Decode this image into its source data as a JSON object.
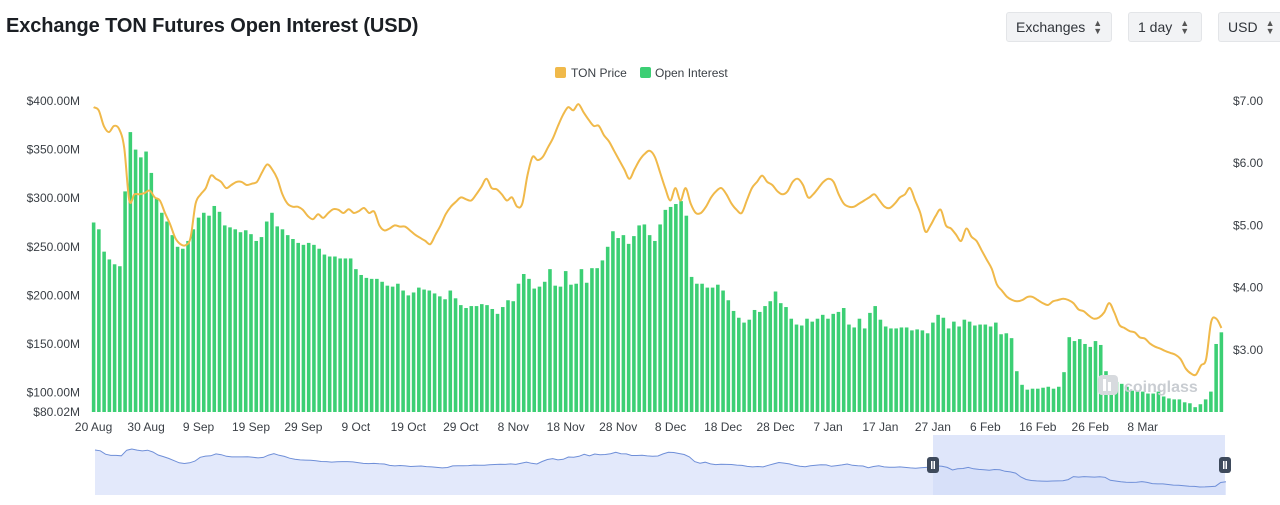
{
  "header": {
    "title": "Exchange TON Futures Open Interest (USD)",
    "exchanges_label": "Exchanges",
    "interval_label": "1 day",
    "currency_label": "USD"
  },
  "watermark": "coinglass",
  "colors": {
    "price": "#f0b94a",
    "oi": "#3ccf74",
    "navigator_fill": "#e3e9fb",
    "navigator_line": "#6f8fd8",
    "navigator_selection": "#d2dcf8"
  },
  "chart_data": {
    "type": "bar",
    "title": "Exchange TON Futures Open Interest (USD)",
    "legend": {
      "position": "top-center",
      "entries": [
        "TON Price",
        "Open Interest"
      ]
    },
    "x_tick_labels": [
      "20 Aug",
      "30 Aug",
      "9 Sep",
      "19 Sep",
      "29 Sep",
      "9 Oct",
      "19 Oct",
      "29 Oct",
      "8 Nov",
      "18 Nov",
      "28 Nov",
      "8 Dec",
      "18 Dec",
      "28 Dec",
      "7 Jan",
      "17 Jan",
      "27 Jan",
      "6 Feb",
      "16 Feb",
      "26 Feb",
      "8 Mar"
    ],
    "y_left": {
      "ticks": [
        "$400.00M",
        "$350.00M",
        "$300.00M",
        "$250.00M",
        "$200.00M",
        "$150.00M",
        "$100.00M",
        "$80.02M"
      ],
      "min": 80.02,
      "max": 400,
      "unit": "M USD"
    },
    "y_right": {
      "ticks": [
        "$7.00",
        "$6.00",
        "$5.00",
        "$4.00",
        "$3.00"
      ],
      "min": 2.0,
      "max": 7.0,
      "unit": "USD"
    },
    "grid": false,
    "start_date": "2024-08-20",
    "series": [
      {
        "name": "Open Interest",
        "axis": "left",
        "type": "bar",
        "values": [
          275,
          268,
          245,
          237,
          232,
          230,
          307,
          368,
          350,
          342,
          348,
          326,
          300,
          285,
          276,
          262,
          250,
          248,
          256,
          268,
          280,
          285,
          282,
          292,
          286,
          272,
          270,
          268,
          265,
          267,
          263,
          256,
          260,
          276,
          285,
          271,
          268,
          262,
          258,
          254,
          252,
          254,
          252,
          248,
          242,
          240,
          240,
          238,
          238,
          238,
          227,
          221,
          218,
          217,
          217,
          214,
          210,
          209,
          212,
          205,
          200,
          203,
          208,
          206,
          205,
          202,
          199,
          196,
          205,
          197,
          190,
          187,
          189,
          189,
          191,
          190,
          186,
          181,
          188,
          195,
          194,
          212,
          222,
          217,
          207,
          209,
          214,
          227,
          210,
          209,
          225,
          211,
          212,
          227,
          213,
          228,
          228,
          236,
          250,
          266,
          259,
          262,
          253,
          261,
          272,
          273,
          262,
          256,
          273,
          288,
          291,
          294,
          297,
          282,
          219,
          212,
          212,
          208,
          208,
          211,
          205,
          195,
          184,
          177,
          172,
          175,
          185,
          183,
          189,
          194,
          204,
          192,
          188,
          176,
          170,
          169,
          176,
          173,
          176,
          180,
          176,
          181,
          183,
          187,
          170,
          167,
          176,
          166,
          182,
          189,
          175,
          168,
          166,
          166,
          167,
          167,
          164,
          165,
          164,
          161,
          172,
          180,
          177,
          166,
          173,
          168,
          175,
          173,
          169,
          170,
          170,
          168,
          172,
          160,
          161,
          156,
          122,
          108,
          103,
          104,
          104,
          105,
          106,
          104,
          106,
          121,
          157,
          153,
          155,
          150,
          147,
          153,
          149,
          122,
          116,
          111,
          109,
          106,
          102,
          102,
          101,
          99,
          99,
          101,
          96,
          94,
          93,
          93,
          90,
          89,
          85,
          88,
          93,
          101,
          150,
          162
        ]
      },
      {
        "name": "TON Price",
        "axis": "right",
        "type": "line",
        "values": [
          6.9,
          6.85,
          6.6,
          6.5,
          6.6,
          6.55,
          6.25,
          5.4,
          5.5,
          5.5,
          5.52,
          5.56,
          5.45,
          5.4,
          5.2,
          5.02,
          4.8,
          4.7,
          4.68,
          4.8,
          5.35,
          5.5,
          5.6,
          5.8,
          5.75,
          5.7,
          5.6,
          5.65,
          5.7,
          5.7,
          5.65,
          5.67,
          5.7,
          5.85,
          5.98,
          5.9,
          5.75,
          5.5,
          5.35,
          5.3,
          5.3,
          5.25,
          5.15,
          5.1,
          5.18,
          5.12,
          5.2,
          5.26,
          5.25,
          5.2,
          5.26,
          5.2,
          5.23,
          5.28,
          5.2,
          5.22,
          5.0,
          4.92,
          4.95,
          5.0,
          4.98,
          4.98,
          4.92,
          4.85,
          4.8,
          4.75,
          4.7,
          4.85,
          5.0,
          5.18,
          5.3,
          5.38,
          5.45,
          5.42,
          5.4,
          5.5,
          5.62,
          5.75,
          5.6,
          5.58,
          5.5,
          5.4,
          5.45,
          5.3,
          5.35,
          5.8,
          6.1,
          6.05,
          6.1,
          6.25,
          6.4,
          6.6,
          6.78,
          6.9,
          6.85,
          6.95,
          6.82,
          6.7,
          6.6,
          6.6,
          6.45,
          6.35,
          6.2,
          6.05,
          5.9,
          5.75,
          5.9,
          6.05,
          6.15,
          6.2,
          6.1,
          5.85,
          5.6,
          5.4,
          5.6,
          5.4,
          5.6,
          5.35,
          5.2,
          5.2,
          5.3,
          5.45,
          5.55,
          5.6,
          5.5,
          5.35,
          5.25,
          5.2,
          5.4,
          5.6,
          5.7,
          5.8,
          5.7,
          5.65,
          5.55,
          5.5,
          5.55,
          5.7,
          5.75,
          5.65,
          5.45,
          5.5,
          5.6,
          5.7,
          5.75,
          5.7,
          5.5,
          5.35,
          5.3,
          5.3,
          5.35,
          5.4,
          5.45,
          5.5,
          5.4,
          5.3,
          5.28,
          5.35,
          5.45,
          5.5,
          5.6,
          5.4,
          5.2,
          4.9,
          5.0,
          5.15,
          5.25,
          5.0,
          4.95,
          4.85,
          4.75,
          4.95,
          4.82,
          4.75,
          4.6,
          4.45,
          4.3,
          4.05,
          3.95,
          3.85,
          3.8,
          3.78,
          3.8,
          3.85,
          3.85,
          3.8,
          3.75,
          3.72,
          3.78,
          3.8,
          3.82,
          3.8,
          3.75,
          3.65,
          3.62,
          3.55,
          3.5,
          3.52,
          3.6,
          3.75,
          3.6,
          3.4,
          3.35,
          3.3,
          3.28,
          3.2,
          3.18,
          3.1,
          3.05,
          3.02,
          2.98,
          2.95,
          2.92,
          2.85,
          2.7,
          2.62,
          2.6,
          2.75,
          2.85,
          3.45,
          3.5,
          3.35
        ]
      }
    ]
  }
}
